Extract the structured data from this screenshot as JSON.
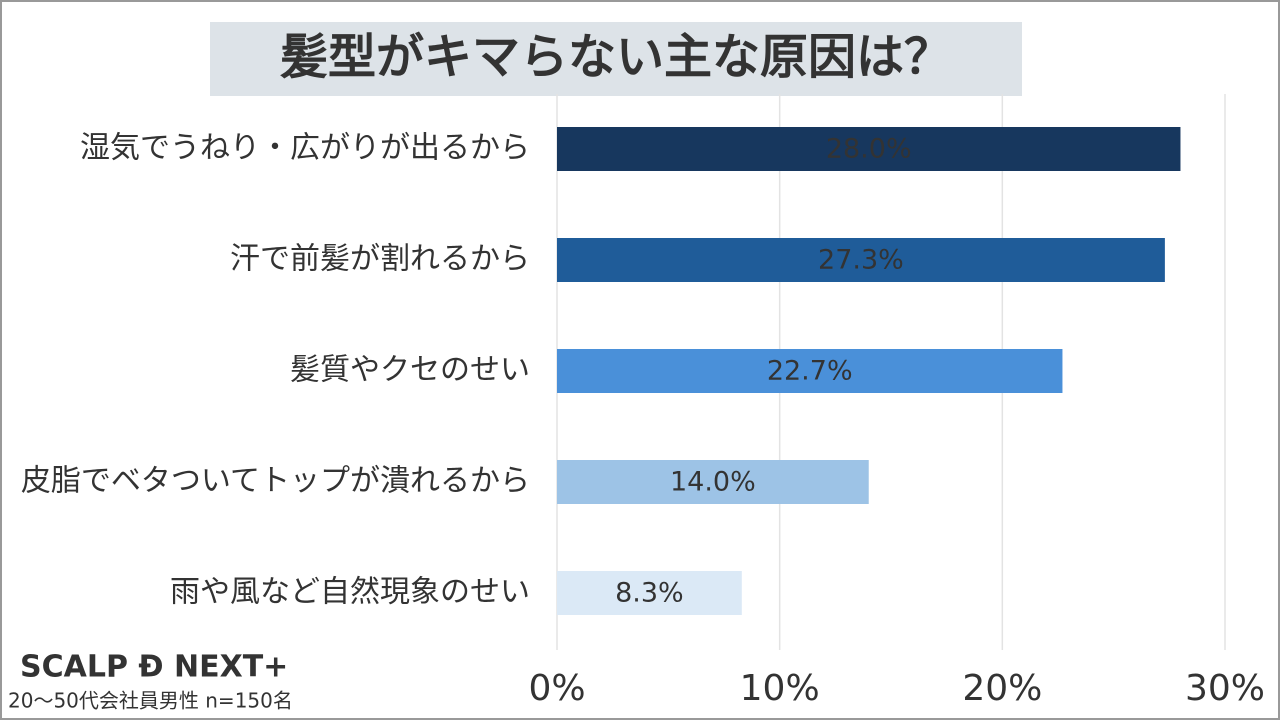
{
  "chart_data": {
    "type": "bar",
    "orientation": "horizontal",
    "title": "髪型がキマらない主な原因は？",
    "categories": [
      "湿気でうねり・広がりが出るから",
      "汗で前髪が割れるから",
      "髪質やクセのせい",
      "皮脂でベタついてトップが潰れるから",
      "雨や風など自然現象のせい"
    ],
    "values": [
      28.0,
      27.3,
      22.7,
      14.0,
      8.3
    ],
    "value_labels": [
      "28.0%",
      "27.3%",
      "22.7%",
      "14.0%",
      "8.3%"
    ],
    "colors": [
      "#17375e",
      "#1f5c99",
      "#4a90d9",
      "#9dc3e6",
      "#dbe9f6"
    ],
    "xlim": [
      0,
      30
    ],
    "xticks": [
      {
        "value": 0,
        "label": "0%"
      },
      {
        "value": 10,
        "label": "10%"
      },
      {
        "value": 20,
        "label": "20%"
      },
      {
        "value": 30,
        "label": "30%"
      }
    ],
    "grid": true,
    "brand": "SCALP Ð NEXT+",
    "note": "20～50代会社員男性  n=150名"
  }
}
